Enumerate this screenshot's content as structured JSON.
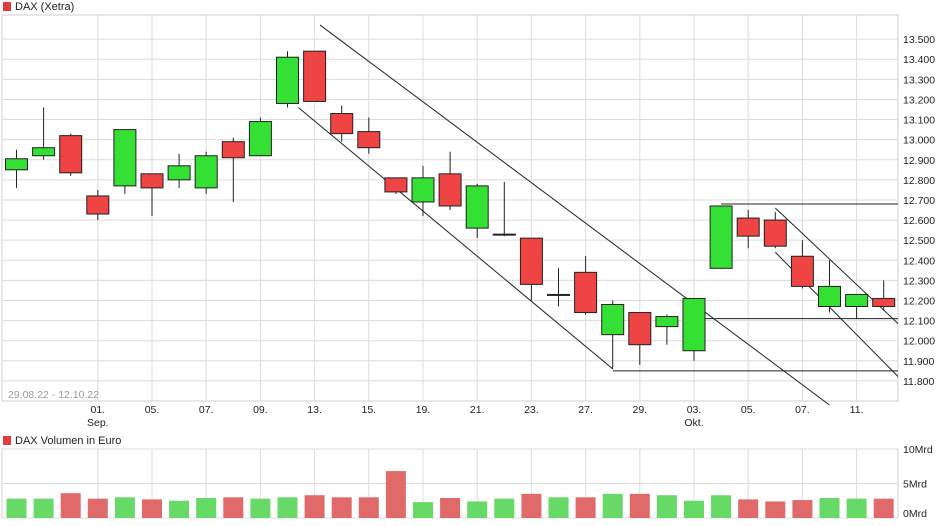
{
  "price_panel": {
    "title": "DAX (Xetra)",
    "title_color": "#e23c3c",
    "range_label": "29.08.22 - 12.10.22"
  },
  "volume_panel": {
    "title": "DAX Volumen in Euro",
    "title_color": "#e23c3c"
  },
  "colors": {
    "up": "#33e033",
    "down": "#ee4444",
    "volume_up": "#66d966",
    "volume_down": "#e06a6a",
    "grid": "#dcdcdc",
    "trendline": "#222222"
  },
  "chart_data": [
    {
      "type": "candlestick",
      "title": "DAX (Xetra)",
      "ylim": [
        11700,
        13620
      ],
      "y_ticks": [
        "11.800",
        "11.900",
        "12.000",
        "12.100",
        "12.200",
        "12.300",
        "12.400",
        "12.500",
        "12.600",
        "12.700",
        "12.800",
        "12.900",
        "13.000",
        "13.100",
        "13.200",
        "13.300",
        "13.400",
        "13.500"
      ],
      "y_tick_values": [
        11800,
        11900,
        12000,
        12100,
        12200,
        12300,
        12400,
        12500,
        12600,
        12700,
        12800,
        12900,
        13000,
        13100,
        13200,
        13300,
        13400,
        13500
      ],
      "x_ticks": [
        "01.",
        "05.",
        "07.",
        "09.",
        "13.",
        "15.",
        "19.",
        "21.",
        "23.",
        "27.",
        "29.",
        "03.",
        "05.",
        "07.",
        "11."
      ],
      "x_tick_index": [
        3,
        5,
        7,
        9,
        11,
        13,
        15,
        17,
        19,
        21,
        23,
        25,
        27,
        29,
        31
      ],
      "x_sublabels": [
        {
          "index": 3,
          "label": "Sep."
        },
        {
          "index": 25,
          "label": "Okt."
        }
      ],
      "grid": true,
      "candles": [
        {
          "date": "29.08.",
          "open": 12850,
          "high": 12950,
          "low": 12760,
          "close": 12905
        },
        {
          "date": "30.08.",
          "open": 12920,
          "high": 13160,
          "low": 12900,
          "close": 12960
        },
        {
          "date": "31.08.",
          "open": 13020,
          "high": 13030,
          "low": 12820,
          "close": 12835
        },
        {
          "date": "01.09.",
          "open": 12720,
          "high": 12750,
          "low": 12600,
          "close": 12630
        },
        {
          "date": "02.09.",
          "open": 12770,
          "high": 13050,
          "low": 12730,
          "close": 13050
        },
        {
          "date": "05.09.",
          "open": 12830,
          "high": 12830,
          "low": 12620,
          "close": 12760
        },
        {
          "date": "06.09.",
          "open": 12800,
          "high": 12930,
          "low": 12760,
          "close": 12870
        },
        {
          "date": "07.09.",
          "open": 12760,
          "high": 12940,
          "low": 12730,
          "close": 12920
        },
        {
          "date": "08.09.",
          "open": 12990,
          "high": 13010,
          "low": 12690,
          "close": 12910
        },
        {
          "date": "09.09.",
          "open": 12920,
          "high": 13110,
          "low": 12920,
          "close": 13090
        },
        {
          "date": "12.09.",
          "open": 13180,
          "high": 13440,
          "low": 13160,
          "close": 13410
        },
        {
          "date": "13.09.",
          "open": 13440,
          "high": 13440,
          "low": 13190,
          "close": 13190
        },
        {
          "date": "14.09.",
          "open": 13130,
          "high": 13170,
          "low": 12990,
          "close": 13030
        },
        {
          "date": "15.09.",
          "open": 13040,
          "high": 13110,
          "low": 12930,
          "close": 12960
        },
        {
          "date": "16.09.",
          "open": 12810,
          "high": 12810,
          "low": 12730,
          "close": 12740
        },
        {
          "date": "19.09.",
          "open": 12690,
          "high": 12870,
          "low": 12620,
          "close": 12810
        },
        {
          "date": "20.09.",
          "open": 12830,
          "high": 12940,
          "low": 12650,
          "close": 12670
        },
        {
          "date": "21.09.",
          "open": 12560,
          "high": 12780,
          "low": 12510,
          "close": 12770
        },
        {
          "date": "22.09.",
          "open": 12530,
          "high": 12790,
          "low": 12520,
          "close": 12530
        },
        {
          "date": "23.09.",
          "open": 12510,
          "high": 12510,
          "low": 12200,
          "close": 12280
        },
        {
          "date": "26.09.",
          "open": 12230,
          "high": 12360,
          "low": 12170,
          "close": 12230
        },
        {
          "date": "27.09.",
          "open": 12340,
          "high": 12420,
          "low": 12130,
          "close": 12140
        },
        {
          "date": "28.09.",
          "open": 12030,
          "high": 12200,
          "low": 11860,
          "close": 12180
        },
        {
          "date": "29.09.",
          "open": 12140,
          "high": 12140,
          "low": 11880,
          "close": 11980
        },
        {
          "date": "30.09.",
          "open": 12070,
          "high": 12130,
          "low": 11980,
          "close": 12120
        },
        {
          "date": "03.10.",
          "open": 11950,
          "high": 12210,
          "low": 11900,
          "close": 12210
        },
        {
          "date": "04.10.",
          "open": 12360,
          "high": 12670,
          "low": 12360,
          "close": 12670
        },
        {
          "date": "05.10.",
          "open": 12610,
          "high": 12650,
          "low": 12460,
          "close": 12520
        },
        {
          "date": "06.10.",
          "open": 12600,
          "high": 12640,
          "low": 12460,
          "close": 12470
        },
        {
          "date": "07.10.",
          "open": 12420,
          "high": 12500,
          "low": 12260,
          "close": 12270
        },
        {
          "date": "10.10.",
          "open": 12170,
          "high": 12400,
          "low": 12140,
          "close": 12270
        },
        {
          "date": "11.10.",
          "open": 12170,
          "high": 12220,
          "low": 12110,
          "close": 12230
        },
        {
          "date": "12.10.",
          "open": 12210,
          "high": 12300,
          "low": 12150,
          "close": 12170
        }
      ],
      "trendlines": [
        {
          "from": {
            "index": 11.2,
            "value": 13570
          },
          "to": {
            "index": 30,
            "value": 11680
          }
        },
        {
          "from": {
            "index": 10.4,
            "value": 13160
          },
          "to": {
            "index": 22,
            "value": 11860
          }
        },
        {
          "from": {
            "index": 22,
            "value": 11850
          },
          "to": {
            "index": 33.2,
            "value": 11850
          }
        },
        {
          "from": {
            "index": 25,
            "value": 12110
          },
          "to": {
            "index": 33.2,
            "value": 12110
          }
        },
        {
          "from": {
            "index": 26,
            "value": 12680
          },
          "to": {
            "index": 33.2,
            "value": 12680
          }
        },
        {
          "from": {
            "index": 28,
            "value": 12660
          },
          "to": {
            "index": 33.2,
            "value": 12000
          }
        },
        {
          "from": {
            "index": 28,
            "value": 12440
          },
          "to": {
            "index": 33.2,
            "value": 11730
          }
        }
      ]
    },
    {
      "type": "bar",
      "title": "DAX Volumen in Euro",
      "unit": "Mrd",
      "ylim": [
        0,
        10
      ],
      "y_ticks": [
        "0Mrd",
        "5Mrd",
        "10Mrd"
      ],
      "y_tick_values": [
        0,
        5,
        10
      ],
      "values": [
        2.8,
        2.8,
        3.6,
        2.8,
        3.0,
        2.7,
        2.5,
        2.9,
        3.0,
        2.8,
        3.0,
        3.3,
        3.0,
        3.0,
        6.8,
        2.3,
        2.9,
        2.4,
        2.8,
        3.5,
        3.0,
        3.0,
        3.5,
        3.5,
        3.3,
        2.5,
        3.3,
        2.7,
        2.4,
        2.6,
        2.9,
        2.8,
        2.8
      ]
    }
  ]
}
